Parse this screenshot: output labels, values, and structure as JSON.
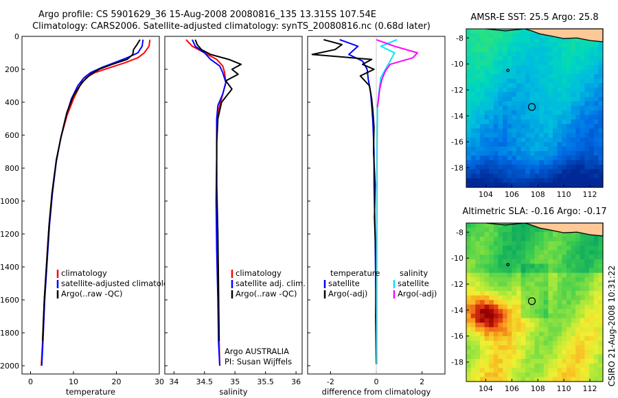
{
  "header": {
    "line1": "Argo profile: CS 5901629_36 15-Aug-2008 20080816_135 13.315S 107.54E",
    "line2": "Climatology: CARS2006. Satellite-adjusted climatology: synTS_20080816.nc (0.68d later)"
  },
  "footer": {
    "credit": "CSIRO 21-Aug-2008 10:31:22"
  },
  "colors": {
    "climatology": "#ff0000",
    "satellite": "#0000ff",
    "argo": "#000000",
    "sat_salinity": "#00e5ff",
    "argo_salinity": "#ff00ff",
    "land": "#ffc896"
  },
  "chart_data": [
    {
      "id": "temperature",
      "type": "line",
      "title": "",
      "xlabel": "temperature",
      "ylabel": "",
      "xlim": [
        -2,
        30
      ],
      "ylim": [
        2050,
        0
      ],
      "xticks": [
        "0",
        "10",
        "20",
        "30"
      ],
      "xtick_values": [
        0,
        10,
        20,
        30
      ],
      "yticks": [
        "0",
        "200",
        "400",
        "600",
        "800",
        "1000",
        "1200",
        "1400",
        "1600",
        "1800",
        "2000"
      ],
      "ytick_values": [
        0,
        200,
        400,
        600,
        800,
        1000,
        1200,
        1400,
        1600,
        1800,
        2000
      ],
      "legend": [
        "climatology",
        "satellite-adjusted climatolog",
        "Argo(..raw -QC)"
      ],
      "series": [
        {
          "name": "climatology",
          "color_key": "climatology",
          "x": [
            27.8,
            27.6,
            26.5,
            25.0,
            22.0,
            18.5,
            15.0,
            13.0,
            11.5,
            10.0,
            8.5,
            7.0,
            6.0,
            5.0,
            4.3,
            3.8,
            3.2,
            2.8,
            2.5
          ],
          "y": [
            20,
            60,
            100,
            130,
            160,
            190,
            220,
            250,
            300,
            380,
            480,
            620,
            760,
            950,
            1150,
            1350,
            1600,
            1850,
            2000
          ]
        },
        {
          "name": "satellite",
          "color_key": "satellite",
          "x": [
            26.2,
            26.0,
            25.0,
            22.5,
            19.5,
            16.5,
            14.0,
            12.5,
            11.0,
            9.5,
            8.3,
            7.0,
            6.0,
            5.1,
            4.4,
            3.9,
            3.3,
            2.9,
            2.6
          ],
          "y": [
            20,
            60,
            100,
            130,
            160,
            190,
            220,
            250,
            300,
            380,
            480,
            620,
            760,
            950,
            1150,
            1350,
            1600,
            1850,
            2000
          ]
        },
        {
          "name": "argo",
          "color_key": "argo",
          "x": [
            25.5,
            24.8,
            24.0,
            23.8,
            22.5,
            19.0,
            16.0,
            14.0,
            12.0,
            10.0,
            8.5,
            7.2,
            6.0,
            5.0,
            4.3,
            3.8,
            3.2,
            2.8
          ],
          "y": [
            20,
            50,
            80,
            110,
            140,
            170,
            200,
            230,
            280,
            360,
            460,
            600,
            750,
            950,
            1150,
            1350,
            1600,
            1850
          ]
        }
      ]
    },
    {
      "id": "salinity",
      "type": "line",
      "title": "",
      "xlabel": "salinity",
      "ylabel": "",
      "xlim": [
        33.85,
        36.1
      ],
      "ylim": [
        2050,
        0
      ],
      "xticks": [
        "34",
        "34.5",
        "35",
        "35.5",
        "36"
      ],
      "xtick_values": [
        34,
        34.5,
        35,
        35.5,
        36
      ],
      "legend": [
        "climatology",
        "satellite adj. clim.",
        "Argo(..raw -QC)"
      ],
      "annotations": [
        "Argo AUSTRALIA",
        "PI: Susan Wijffels"
      ],
      "series": [
        {
          "name": "climatology",
          "color_key": "climatology",
          "x": [
            34.2,
            34.3,
            34.5,
            34.7,
            34.8,
            34.83,
            34.85,
            34.8,
            34.75,
            34.7,
            34.7,
            34.7,
            34.72,
            34.73,
            34.74,
            34.75
          ],
          "y": [
            20,
            60,
            100,
            140,
            180,
            220,
            280,
            350,
            420,
            500,
            700,
            1000,
            1300,
            1600,
            1850,
            2000
          ]
        },
        {
          "name": "satellite",
          "color_key": "satellite",
          "x": [
            34.3,
            34.35,
            34.5,
            34.6,
            34.75,
            34.8,
            34.85,
            34.8,
            34.72,
            34.7,
            34.7,
            34.69,
            34.7,
            34.72,
            34.73,
            34.75
          ],
          "y": [
            20,
            60,
            100,
            140,
            180,
            220,
            280,
            350,
            420,
            500,
            700,
            1000,
            1300,
            1600,
            1850,
            2000
          ]
        },
        {
          "name": "argo",
          "color_key": "argo",
          "x": [
            34.35,
            34.38,
            34.45,
            34.6,
            34.9,
            35.1,
            34.95,
            35.05,
            34.85,
            34.95,
            34.78,
            34.72,
            34.7,
            34.7,
            34.72,
            34.73,
            34.74
          ],
          "y": [
            20,
            50,
            80,
            110,
            140,
            170,
            200,
            230,
            270,
            320,
            400,
            500,
            650,
            900,
            1200,
            1500,
            1850
          ]
        }
      ]
    },
    {
      "id": "difference",
      "type": "line",
      "title": "",
      "xlabel": "difference from climatology",
      "ylabel": "",
      "xlim": [
        -3,
        3
      ],
      "ylim": [
        2050,
        0
      ],
      "xticks": [
        "-2",
        "0",
        "2"
      ],
      "xtick_values": [
        -2,
        0,
        2
      ],
      "legend_titles": [
        "temperature",
        "salinity"
      ],
      "legend": [
        "satellite",
        "Argo(-adj)",
        "satellite",
        "Argo(-adj)"
      ],
      "series": [
        {
          "name": "temperature satellite",
          "color_key": "satellite",
          "x": [
            -1.6,
            -0.8,
            -1.2,
            -0.6,
            -0.4,
            -0.35,
            -0.25,
            -0.2,
            -0.15,
            -0.1,
            -0.1,
            -0.05,
            -0.02,
            0.0
          ],
          "y": [
            20,
            60,
            110,
            150,
            200,
            260,
            340,
            420,
            520,
            700,
            900,
            1200,
            1600,
            1990
          ]
        },
        {
          "name": "temperature argo",
          "color_key": "argo",
          "x": [
            -2.3,
            -1.5,
            -1.8,
            -2.8,
            -0.2,
            -0.6,
            -0.1,
            -0.7,
            -0.3,
            -0.2,
            -0.15,
            -0.1,
            -0.12,
            -0.05,
            -0.08,
            0.0,
            -0.03,
            0.0
          ],
          "y": [
            20,
            50,
            80,
            110,
            140,
            170,
            200,
            240,
            300,
            380,
            450,
            550,
            700,
            900,
            1100,
            1400,
            1700,
            1990
          ]
        },
        {
          "name": "salinity satellite",
          "color_key": "sat_salinity",
          "x": [
            0.9,
            0.2,
            0.8,
            0.6,
            0.4,
            0.2,
            0.15,
            0.1,
            0.05,
            0.05,
            0.03,
            0.03,
            0.02,
            0.02
          ],
          "y": [
            20,
            60,
            100,
            150,
            200,
            250,
            300,
            360,
            420,
            500,
            700,
            1000,
            1500,
            1990
          ]
        },
        {
          "name": "salinity argo",
          "color_key": "argo_salinity",
          "x": [
            0.0,
            0.8,
            1.8,
            1.6,
            0.6,
            0.4,
            0.25,
            0.15,
            0.1,
            0.05
          ],
          "y": [
            20,
            60,
            100,
            130,
            170,
            210,
            260,
            320,
            380,
            430
          ]
        }
      ]
    },
    {
      "id": "sst_map",
      "type": "heatmap",
      "title": "AMSR-E SST: 25.5 Argo: 25.8",
      "xlabel": "",
      "ylabel": "",
      "xlim": [
        102.5,
        113
      ],
      "ylim": [
        -19.5,
        -7.3
      ],
      "xticks": [
        "104",
        "106",
        "108",
        "110",
        "112"
      ],
      "xtick_values": [
        104,
        106,
        108,
        110,
        112
      ],
      "yticks": [
        "-8",
        "-10",
        "-12",
        "-14",
        "-16",
        "-18"
      ],
      "ytick_values": [
        -8,
        -10,
        -12,
        -14,
        -16,
        -18
      ],
      "markers": [
        {
          "kind": "profile",
          "lon": 107.54,
          "lat": -13.315
        },
        {
          "kind": "island",
          "lon": 105.7,
          "lat": -10.5
        }
      ],
      "seed": 7
    },
    {
      "id": "sla_map",
      "type": "heatmap",
      "title": "Altimetric SLA: -0.16 Argo: -0.17",
      "xlabel": "",
      "ylabel": "",
      "xlim": [
        102.5,
        113
      ],
      "ylim": [
        -19.5,
        -7.3
      ],
      "xticks": [
        "104",
        "106",
        "108",
        "110",
        "112"
      ],
      "xtick_values": [
        104,
        106,
        108,
        110,
        112
      ],
      "yticks": [
        "-8",
        "-10",
        "-12",
        "-14",
        "-16",
        "-18"
      ],
      "ytick_values": [
        -8,
        -10,
        -12,
        -14,
        -16,
        -18
      ],
      "markers": [
        {
          "kind": "profile",
          "lon": 107.54,
          "lat": -13.315
        },
        {
          "kind": "island",
          "lon": 105.7,
          "lat": -10.5
        }
      ],
      "seed": 23
    }
  ]
}
